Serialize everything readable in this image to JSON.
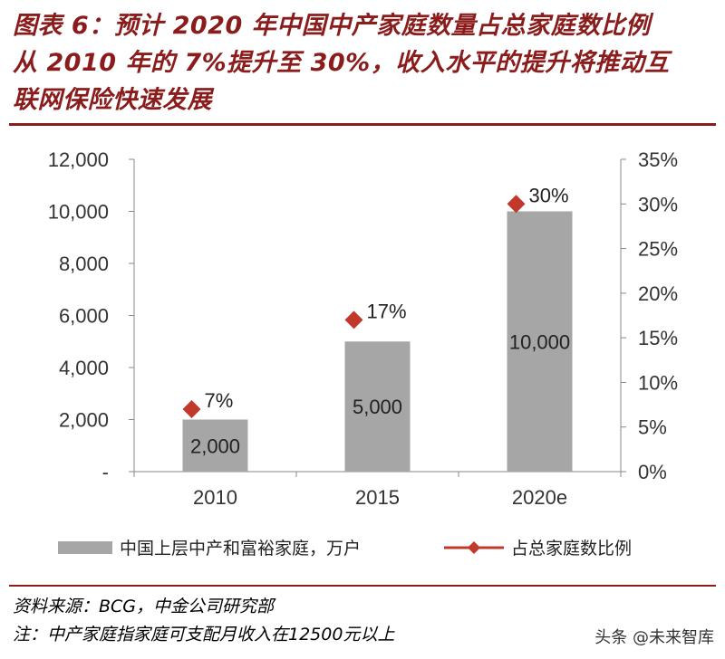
{
  "title": "图表6：预计2020年中国中产家庭数量占总家庭数比例从2010年的7%提升至30%，收入水平的提升将推动互联网保险快速发展",
  "title_lines": [
    "图表 6：预计 2020 年中国中产家庭数量占总家庭数比例",
    "从 2010 年的 7%提升至 30%，收入水平的提升将推动互",
    "联网保险快速发展"
  ],
  "chart_data": {
    "type": "bar",
    "categories": [
      "2010",
      "2015",
      "2020e"
    ],
    "series": [
      {
        "name": "中国上层中产和富裕家庭，万户",
        "kind": "bar",
        "axis": "left",
        "values": [
          2000,
          5000,
          10000
        ],
        "labels": [
          "2,000",
          "5,000",
          "10,000"
        ],
        "color": "#a6a6a6"
      },
      {
        "name": "占总家庭数比例",
        "kind": "marker",
        "axis": "right",
        "values": [
          7,
          17,
          30
        ],
        "labels": [
          "7%",
          "17%",
          "30%"
        ],
        "color": "#c0392b"
      }
    ],
    "y_left": {
      "ylim": [
        0,
        12000
      ],
      "ticks": [
        0,
        2000,
        4000,
        6000,
        8000,
        10000,
        12000
      ],
      "tick_labels": [
        "-",
        "2,000",
        "4,000",
        "6,000",
        "8,000",
        "10,000",
        "12,000"
      ]
    },
    "y_right": {
      "ylim": [
        0,
        35
      ],
      "ticks": [
        0,
        5,
        10,
        15,
        20,
        25,
        30,
        35
      ],
      "tick_labels": [
        "0%",
        "5%",
        "10%",
        "15%",
        "20%",
        "25%",
        "30%",
        "35%"
      ]
    },
    "legend": "bottom",
    "grid": false
  },
  "footer": {
    "source": "资料来源：BCG，中金公司研究部",
    "note": "注：中产家庭指家庭可支配月收入在12500元以上"
  },
  "watermark": "头条 @未来智库",
  "colors": {
    "title": "#8a1c1c",
    "bar": "#a6a6a6",
    "marker": "#c0392b"
  }
}
